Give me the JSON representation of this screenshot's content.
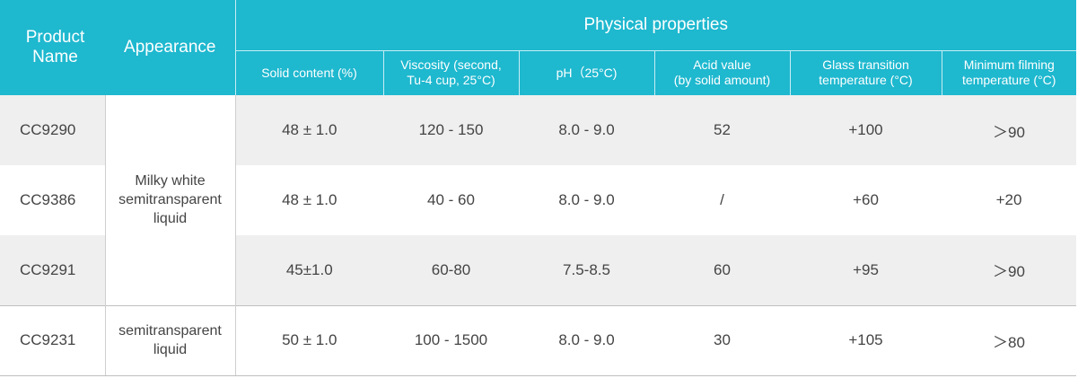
{
  "header": {
    "product_name": "Product Name",
    "appearance": "Appearance",
    "group": "Physical properties",
    "columns": [
      {
        "line1": "Solid content (%)",
        "line2": ""
      },
      {
        "line1": "Viscosity (second,",
        "line2": "Tu-4 cup, 25°C)"
      },
      {
        "line1": "pH（25°C)",
        "line2": ""
      },
      {
        "line1": "Acid value",
        "line2": "(by solid amount)"
      },
      {
        "line1": "Glass transition",
        "line2": "temperature (°C)"
      },
      {
        "line1": "Minimum filming",
        "line2": "temperature (°C)"
      }
    ]
  },
  "appearance_groups": [
    {
      "line1": "Milky white",
      "line2": "semitransparent",
      "line3": "liquid"
    },
    {
      "line1": "semitransparent",
      "line2": "liquid",
      "line3": ""
    }
  ],
  "rows": [
    {
      "code": "CC9290",
      "solid": "48 ± 1.0",
      "viscosity": "120 - 150",
      "ph": "8.0 - 9.0",
      "acid": "52",
      "tg": "+100",
      "mft": "＞90"
    },
    {
      "code": "CC9386",
      "solid": "48 ± 1.0",
      "viscosity": "40 - 60",
      "ph": "8.0 - 9.0",
      "acid": "/",
      "tg": "+60",
      "mft": "+20"
    },
    {
      "code": "CC9291",
      "solid": "45±1.0",
      "viscosity": "60-80",
      "ph": "7.5-8.5",
      "acid": "60",
      "tg": "+95",
      "mft": "＞90"
    },
    {
      "code": "CC9231",
      "solid": "50 ± 1.0",
      "viscosity": "100 - 1500",
      "ph": "8.0 - 9.0",
      "acid": "30",
      "tg": "+105",
      "mft": "＞80"
    }
  ]
}
